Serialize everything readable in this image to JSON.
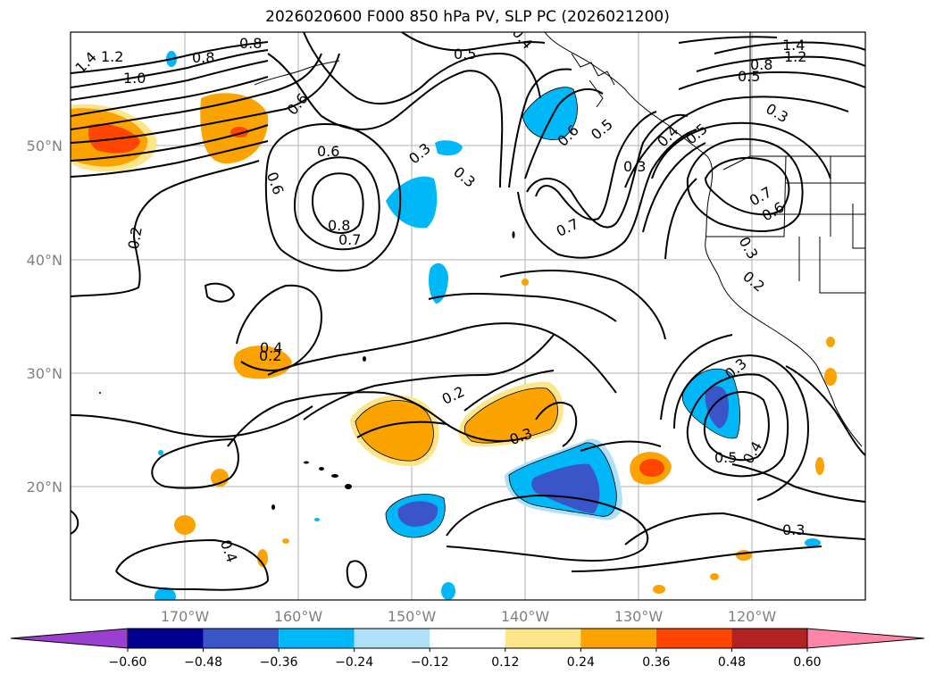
{
  "title": "2026020600 F000 850 hPa PV, SLP PC (2026021200)",
  "lon_ticks": [
    "170°W",
    "160°W",
    "150°W",
    "140°W",
    "130°W",
    "120°W"
  ],
  "lat_ticks": [
    "50°N",
    "40°N",
    "30°N",
    "20°N"
  ],
  "contour_labels": [
    "1.4",
    "1.2",
    "1.0",
    "0.8",
    "0.8",
    "0.6",
    "0.5",
    "0.4",
    "0.6",
    "0.3",
    "0.3",
    "0.6",
    "0.5",
    "0.3",
    "0.4",
    "0.5",
    "0.3",
    "0.7",
    "0.8",
    "0.7",
    "0.6",
    "0.4",
    "0.2",
    "0.4",
    "0.2",
    "0.3",
    "0.7",
    "0.6",
    "0.3",
    "0.2",
    "0.3",
    "0.5",
    "0.4",
    "0.3",
    "0.2",
    "1.4",
    "1.2",
    "0.8",
    "0.5"
  ],
  "colorbar": {
    "ticks": [
      "−0.60",
      "−0.48",
      "−0.36",
      "−0.24",
      "−0.12",
      "0.12",
      "0.24",
      "0.36",
      "0.48",
      "0.60"
    ],
    "colors": [
      "#9a3fd0",
      "#000090",
      "#3a55c8",
      "#00b8f8",
      "#aee0f8",
      "#ffffff",
      "#fde68a",
      "#fba300",
      "#ff4500",
      "#b22222",
      "#ff85a8",
      "#ff85a8"
    ]
  }
}
